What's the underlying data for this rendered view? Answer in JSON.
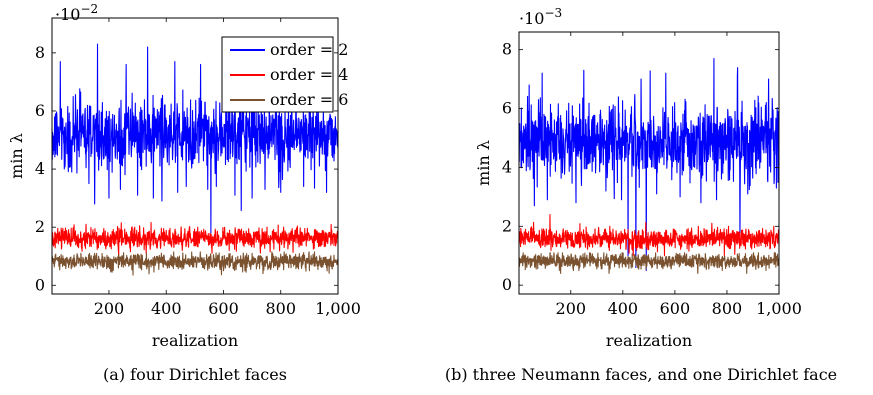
{
  "chart_data": [
    {
      "type": "line",
      "caption": "(a) four Dirichlet faces",
      "xlabel": "realization",
      "ylabel": "min λ",
      "ylim": [
        -0.3,
        9.2
      ],
      "xlim": [
        1,
        1000
      ],
      "y_scale_label": "·10",
      "y_scale_exp": "−2",
      "xticks": [
        200,
        400,
        600,
        800,
        1000
      ],
      "xtick_labels": [
        "200",
        "400",
        "600",
        "800",
        "1,000"
      ],
      "yticks": [
        0,
        2,
        4,
        6,
        8
      ],
      "ytick_labels": [
        "0",
        "2",
        "4",
        "6",
        "8"
      ],
      "legend": {
        "position": "top-right"
      },
      "grid": false,
      "series": [
        {
          "name": "order = 2",
          "color": "#0000ff",
          "mean": 5.2,
          "amp": 0.55,
          "min": 1.8,
          "max": 8.3,
          "dips": [
            [
              70,
              3.9
            ],
            [
              130,
              3.5
            ],
            [
              150,
              2.8
            ],
            [
              200,
              3.0
            ],
            [
              240,
              3.3
            ],
            [
              300,
              3.1
            ],
            [
              355,
              3.0
            ],
            [
              385,
              2.9
            ],
            [
              440,
              3.2
            ],
            [
              470,
              3.4
            ],
            [
              545,
              3.3
            ],
            [
              556,
              1.8
            ],
            [
              575,
              3.4
            ],
            [
              640,
              3.1
            ],
            [
              700,
              3.0
            ],
            [
              745,
              3.3
            ],
            [
              800,
              3.2
            ],
            [
              880,
              3.4
            ],
            [
              960,
              3.2
            ]
          ],
          "peaks": [
            [
              30,
              7.7
            ],
            [
              160,
              8.3
            ],
            [
              260,
              7.6
            ],
            [
              335,
              8.2
            ],
            [
              430,
              7.7
            ],
            [
              520,
              7.6
            ],
            [
              660,
              7.8
            ],
            [
              760,
              7.6
            ],
            [
              900,
              7.6
            ]
          ]
        },
        {
          "name": "order = 4",
          "color": "#ff0000",
          "mean": 1.62,
          "amp": 0.17,
          "min": 1.0,
          "max": 2.2,
          "dips": [
            [
              330,
              1.1
            ],
            [
              560,
              1.1
            ],
            [
              620,
              1.2
            ]
          ],
          "peaks": [
            [
              120,
              2.1
            ],
            [
              290,
              2.0
            ],
            [
              510,
              2.0
            ],
            [
              810,
              2.0
            ]
          ]
        },
        {
          "name": "order = 6",
          "color": "#7a5230",
          "mean": 0.82,
          "amp": 0.13,
          "min": 0.35,
          "max": 1.15,
          "dips": [
            [
              210,
              0.5
            ],
            [
              600,
              0.5
            ],
            [
              900,
              0.5
            ]
          ],
          "peaks": [
            [
              150,
              1.1
            ],
            [
              700,
              1.1
            ]
          ]
        }
      ]
    },
    {
      "type": "line",
      "caption": "(b) three Neumann faces, and one Dirichlet face",
      "xlabel": "realization",
      "ylabel": "min λ",
      "ylim": [
        -0.3,
        8.6
      ],
      "xlim": [
        1,
        1000
      ],
      "y_scale_label": "·10",
      "y_scale_exp": "−3",
      "xticks": [
        200,
        400,
        600,
        800,
        1000
      ],
      "xtick_labels": [
        "200",
        "400",
        "600",
        "800",
        "1,000"
      ],
      "yticks": [
        0,
        2,
        4,
        6,
        8
      ],
      "ytick_labels": [
        "0",
        "2",
        "4",
        "6",
        "8"
      ],
      "grid": false,
      "series": [
        {
          "name": "order = 2",
          "color": "#0000ff",
          "mean": 4.9,
          "amp": 0.6,
          "min": 0.5,
          "max": 7.7,
          "dips": [
            [
              60,
              2.7
            ],
            [
              110,
              2.9
            ],
            [
              220,
              2.8
            ],
            [
              335,
              3.2
            ],
            [
              395,
              2.9
            ],
            [
              420,
              1.0
            ],
            [
              450,
              0.6
            ],
            [
              490,
              0.5
            ],
            [
              530,
              3.1
            ],
            [
              620,
              3.0
            ],
            [
              700,
              2.8
            ],
            [
              760,
              2.9
            ],
            [
              850,
              1.7
            ],
            [
              880,
              3.1
            ],
            [
              990,
              3.3
            ]
          ],
          "peaks": [
            [
              40,
              6.8
            ],
            [
              90,
              7.2
            ],
            [
              250,
              7.3
            ],
            [
              470,
              7.0
            ],
            [
              565,
              7.2
            ],
            [
              750,
              7.7
            ],
            [
              840,
              7.1
            ],
            [
              960,
              7.0
            ]
          ]
        },
        {
          "name": "order = 4",
          "color": "#ff0000",
          "mean": 1.58,
          "amp": 0.16,
          "min": 0.9,
          "max": 2.4,
          "dips": [
            [
              440,
              1.0
            ],
            [
              560,
              1.0
            ],
            [
              790,
              1.0
            ]
          ],
          "peaks": [
            [
              120,
              2.4
            ],
            [
              350,
              2.0
            ],
            [
              690,
              2.0
            ],
            [
              980,
              2.0
            ]
          ]
        },
        {
          "name": "order = 6",
          "color": "#7a5230",
          "mean": 0.82,
          "amp": 0.12,
          "min": 0.4,
          "max": 1.1,
          "dips": [
            [
              300,
              0.55
            ],
            [
              730,
              0.55
            ]
          ],
          "peaks": [
            [
              120,
              1.1
            ],
            [
              610,
              1.05
            ]
          ]
        }
      ]
    }
  ]
}
